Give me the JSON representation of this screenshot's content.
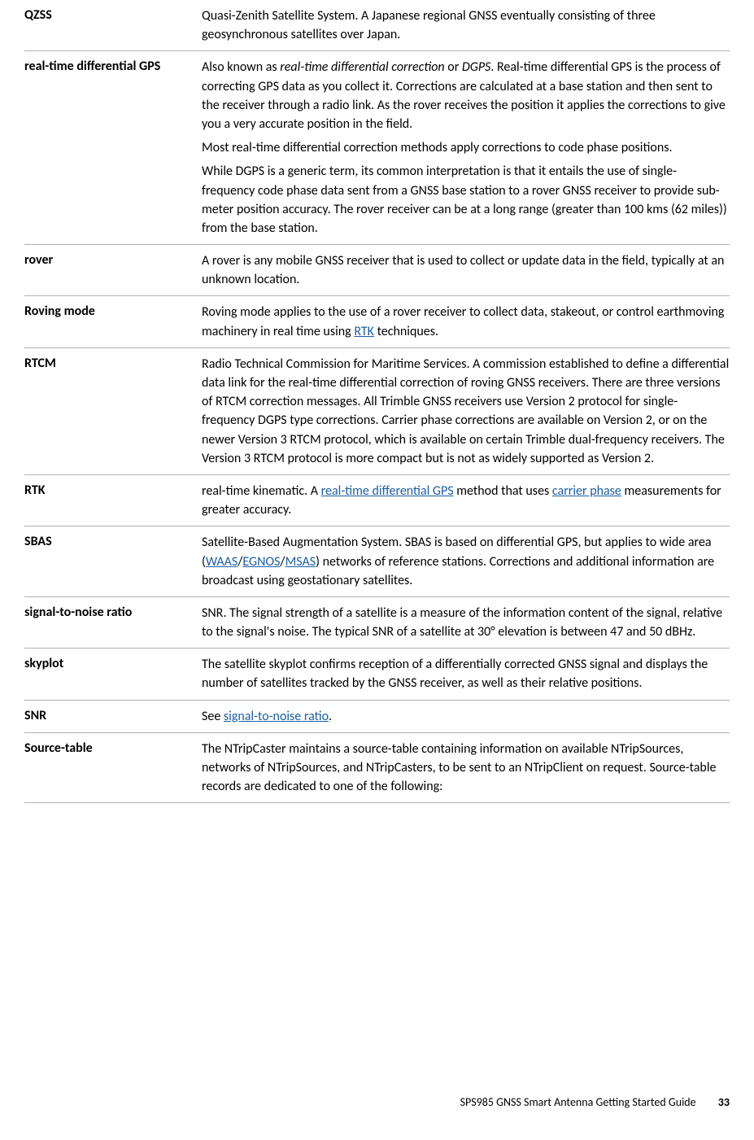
{
  "entries": [
    {
      "term": "QZSS",
      "paragraphs": [
        [
          {
            "t": "Quasi-Zenith Satellite System. A Japanese regional GNSS eventually consisting of three geosynchronous satellites over Japan."
          }
        ]
      ]
    },
    {
      "term": "real-time differential GPS",
      "paragraphs": [
        [
          {
            "t": "Also known as "
          },
          {
            "t": "real-time differential correction",
            "italic": true
          },
          {
            "t": " or "
          },
          {
            "t": "DGPS",
            "italic": true
          },
          {
            "t": ". Real-time differential GPS is the process of correcting GPS data as you collect it. Corrections are calculated at a base station and then sent to the receiver through a radio link. As the rover receives the position it applies the corrections to give you a very accurate position in the field."
          }
        ],
        [
          {
            "t": "Most real-time differential correction methods apply corrections to code phase positions."
          }
        ],
        [
          {
            "t": "While DGPS is a generic term, its common interpretation is that it entails the use of single-frequency code phase data sent from a GNSS base station to a rover GNSS receiver to provide sub-meter position accuracy. The rover receiver can be at a long range (greater than 100 kms (62 miles)) from the base station."
          }
        ]
      ]
    },
    {
      "term": "rover",
      "paragraphs": [
        [
          {
            "t": "A rover is any mobile GNSS receiver that is used to collect or update data in the field, typically at an unknown location."
          }
        ]
      ]
    },
    {
      "term": "Roving mode",
      "paragraphs": [
        [
          {
            "t": "Roving mode applies to the use of a rover receiver to collect data, stakeout, or control earthmoving machinery in real time using "
          },
          {
            "t": "RTK",
            "link": true
          },
          {
            "t": " techniques."
          }
        ]
      ]
    },
    {
      "term": "RTCM",
      "paragraphs": [
        [
          {
            "t": "Radio Technical Commission for Maritime Services. A commission established to define a differential data link for the real-time differential correction of roving GNSS receivers. There are three versions of RTCM correction messages. All Trimble GNSS receivers use Version 2 protocol for single-frequency DGPS type corrections. Carrier phase corrections are available on Version 2, or on the newer Version 3 RTCM protocol, which is available on certain Trimble dual-frequency receivers. The Version 3 RTCM protocol is more compact but is not as widely supported as Version 2."
          }
        ]
      ]
    },
    {
      "term": "RTK",
      "paragraphs": [
        [
          {
            "t": "real-time kinematic. A "
          },
          {
            "t": "real-time differential GPS",
            "link": true
          },
          {
            "t": " method that uses "
          },
          {
            "t": "carrier phase",
            "link": true
          },
          {
            "t": " measurements for greater accuracy."
          }
        ]
      ]
    },
    {
      "term": "SBAS",
      "paragraphs": [
        [
          {
            "t": "Satellite-Based Augmentation System. SBAS is based on differential GPS, but applies to wide area ("
          },
          {
            "t": "WAAS",
            "link": true
          },
          {
            "t": "/"
          },
          {
            "t": "EGNOS",
            "link": true
          },
          {
            "t": "/"
          },
          {
            "t": "MSAS",
            "link": true
          },
          {
            "t": ") networks of reference stations. Corrections and additional information are broadcast using geostationary satellites."
          }
        ]
      ]
    },
    {
      "term": "signal-to-noise ratio",
      "paragraphs": [
        [
          {
            "t": "SNR. The signal strength of a satellite is a measure of the information content of the signal, relative to the signal's noise. The typical SNR of a satellite at 30° elevation is between 47 and 50 dBHz."
          }
        ]
      ]
    },
    {
      "term": "skyplot",
      "paragraphs": [
        [
          {
            "t": "The satellite skyplot confirms reception of a differentially corrected GNSS signal and displays the number of satellites tracked by the GNSS receiver, as well as their relative positions."
          }
        ]
      ]
    },
    {
      "term": "SNR",
      "paragraphs": [
        [
          {
            "t": "See "
          },
          {
            "t": "signal-to-noise ratio",
            "link": true
          },
          {
            "t": "."
          }
        ]
      ]
    },
    {
      "term": "Source-table",
      "paragraphs": [
        [
          {
            "t": "The NTripCaster maintains a source-table containing information on available NTripSources, networks of NTripSources, and NTripCasters, to be sent to an NTripClient on request. Source-table records are dedicated to one of the following:"
          }
        ]
      ]
    }
  ],
  "footer": {
    "doc_title": "SPS985 GNSS Smart Antenna Getting Started Guide",
    "page_number": "33"
  }
}
